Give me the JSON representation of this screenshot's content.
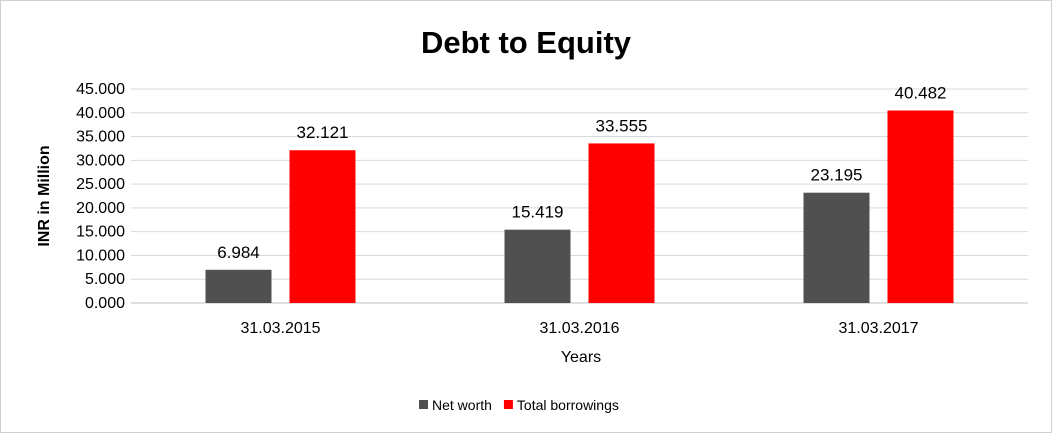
{
  "chart_data": {
    "type": "bar",
    "title": "Debt to Equity",
    "xlabel": "Years",
    "ylabel": "INR in Million",
    "categories": [
      "31.03.2015",
      "31.03.2016",
      "31.03.2017"
    ],
    "series": [
      {
        "name": "Net worth",
        "values": [
          6.984,
          15.419,
          23.195
        ],
        "color": "#505050"
      },
      {
        "name": "Total borrowings",
        "values": [
          32.121,
          33.555,
          40.482
        ],
        "color": "#ff0000"
      }
    ],
    "ylim": [
      0,
      45
    ],
    "yticks": [
      "0.000",
      "5.000",
      "10.000",
      "15.000",
      "20.000",
      "25.000",
      "30.000",
      "35.000",
      "40.000",
      "45.000"
    ],
    "ytick_values": [
      0,
      5,
      10,
      15,
      20,
      25,
      30,
      35,
      40,
      45
    ],
    "data_labels": [
      [
        "6.984",
        "15.419",
        "23.195"
      ],
      [
        "32.121",
        "33.555",
        "40.482"
      ]
    ],
    "grid": true,
    "legend_position": "bottom"
  }
}
